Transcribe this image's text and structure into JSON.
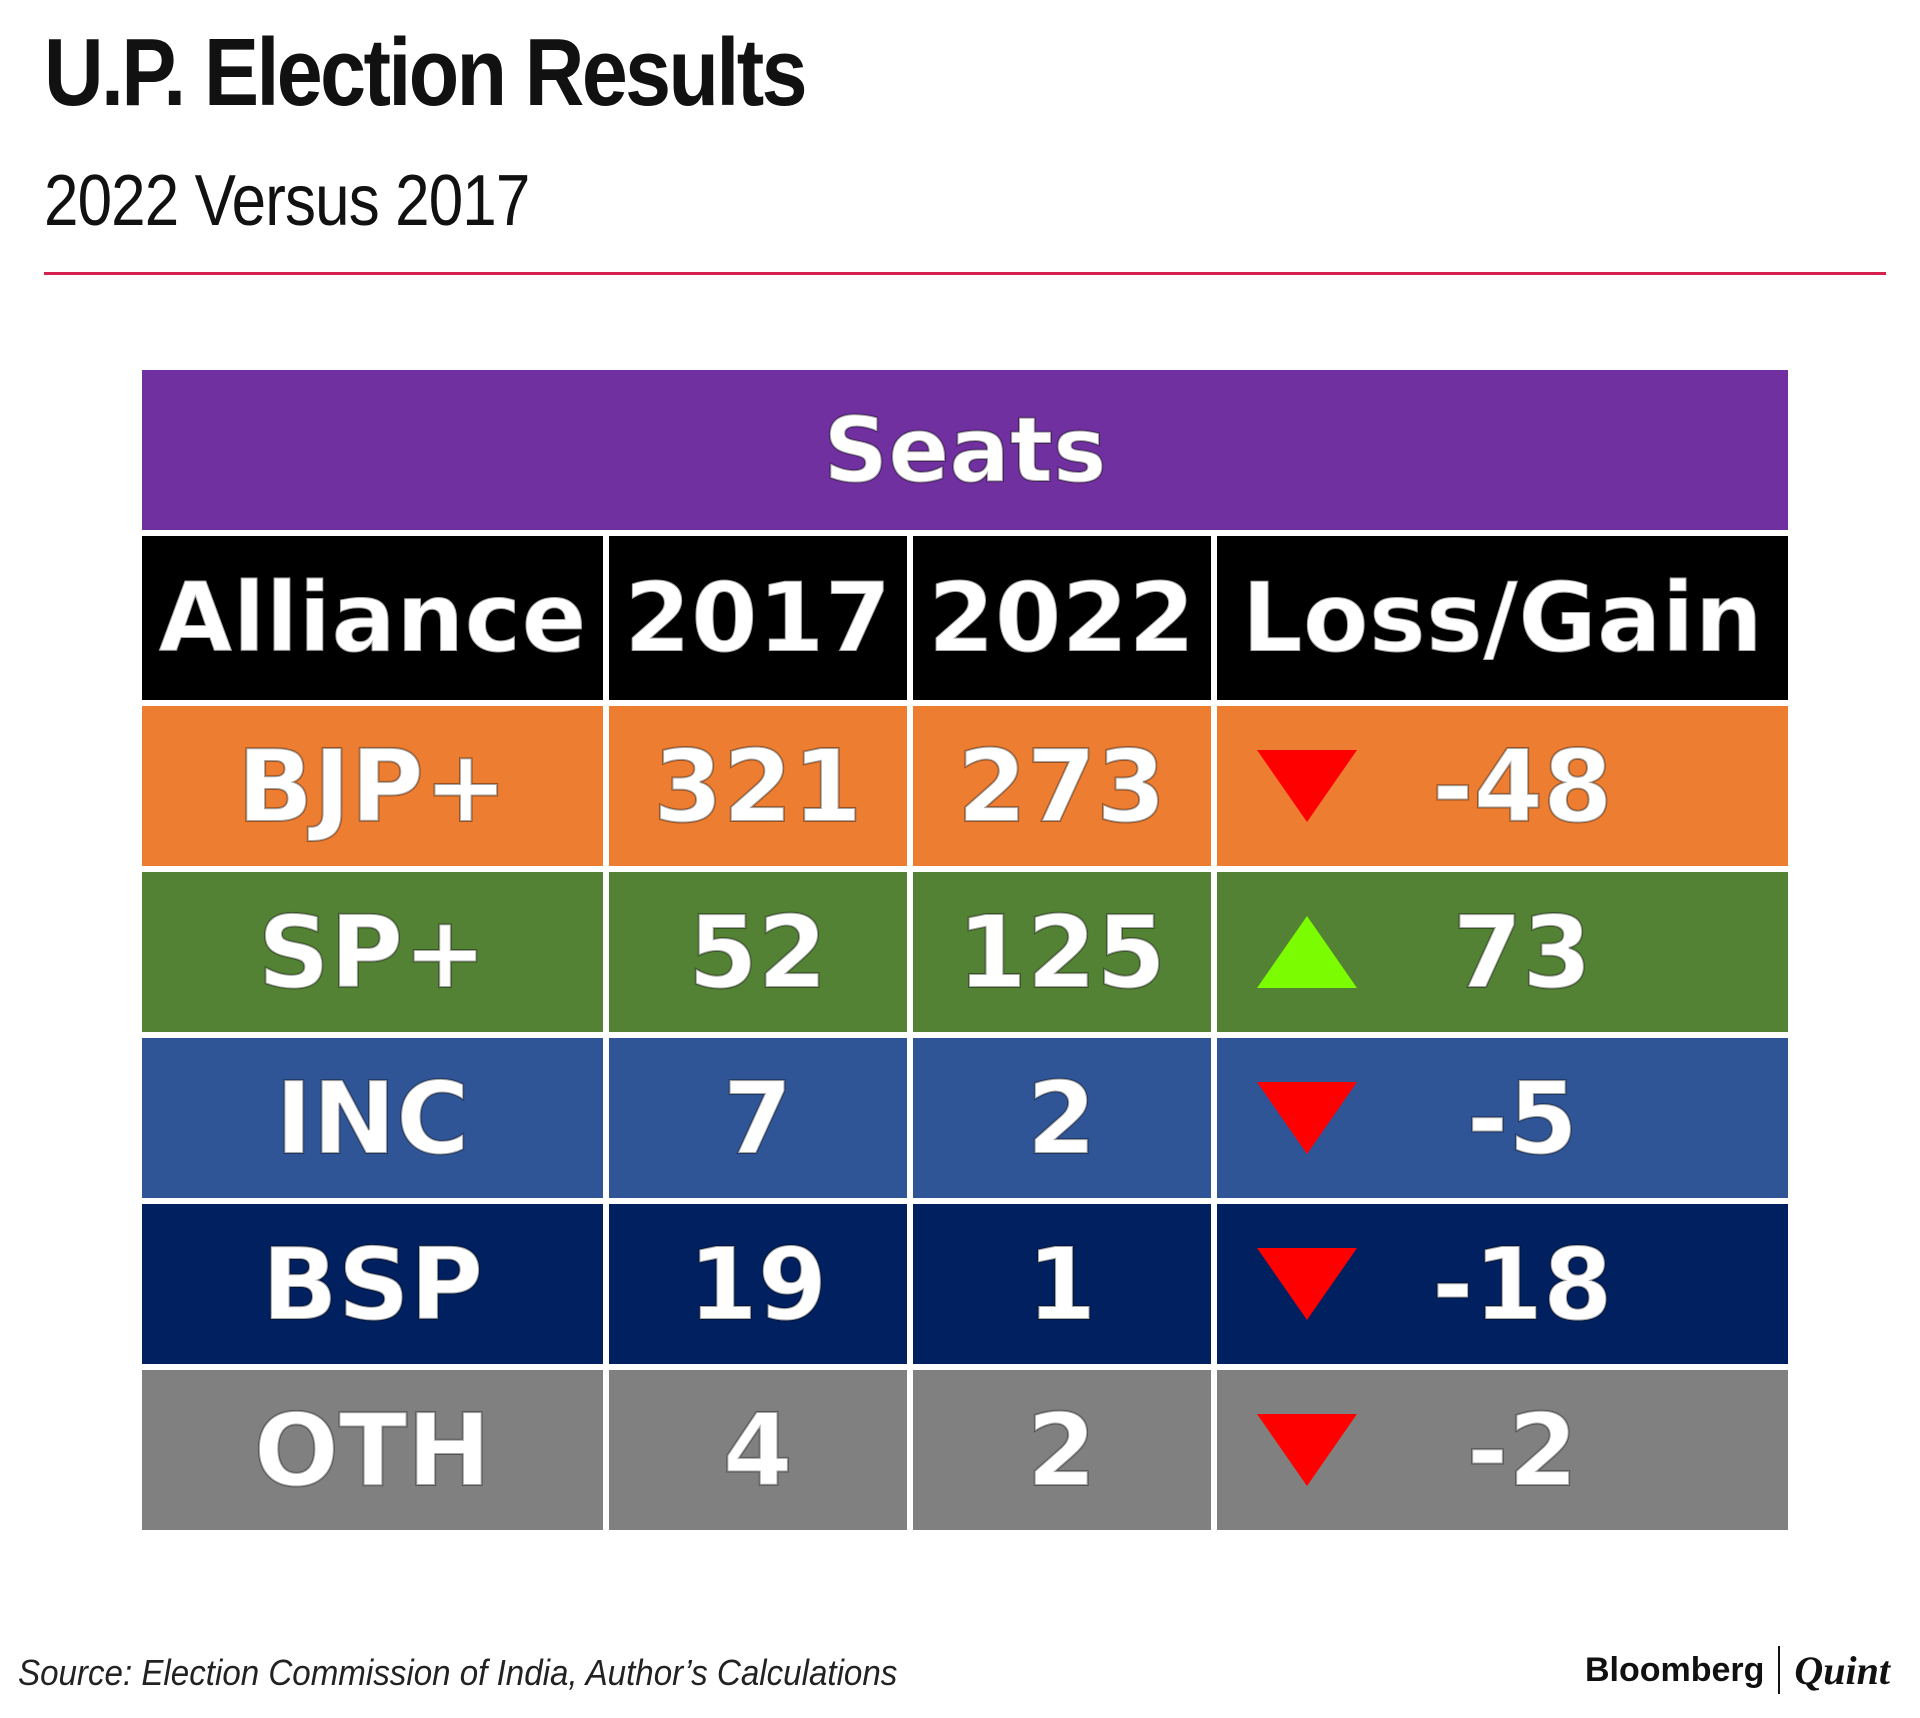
{
  "header": {
    "title": "U.P. Election Results",
    "subtitle": "2022 Versus 2017"
  },
  "table": {
    "group_header": "Seats",
    "columns": [
      "Alliance",
      "2017",
      "2022",
      "Loss/Gain"
    ]
  },
  "chart_data": {
    "type": "table",
    "title": "U.P. Election Results",
    "subtitle": "2022 Versus 2017",
    "group_header": "Seats",
    "columns": [
      "Alliance",
      "2017",
      "2022",
      "Loss/Gain"
    ],
    "rows": [
      {
        "alliance": "BJP+",
        "y2017": "321",
        "y2022": "273",
        "change": "-48",
        "direction": "down",
        "row_color": "#ed7d31",
        "arrow_color": "#ff0000"
      },
      {
        "alliance": "SP+",
        "y2017": "52",
        "y2022": "125",
        "change": "73",
        "direction": "up",
        "row_color": "#548235",
        "arrow_color": "#7cfc00"
      },
      {
        "alliance": "INC",
        "y2017": "7",
        "y2022": "2",
        "change": "-5",
        "direction": "down",
        "row_color": "#2f5597",
        "arrow_color": "#ff0000"
      },
      {
        "alliance": "BSP",
        "y2017": "19",
        "y2022": "1",
        "change": "-18",
        "direction": "down",
        "row_color": "#002060",
        "arrow_color": "#ff0000"
      },
      {
        "alliance": "OTH",
        "y2017": "4",
        "y2022": "2",
        "change": "-2",
        "direction": "down",
        "row_color": "#808080",
        "arrow_color": "#ff0000"
      }
    ]
  },
  "colors": {
    "group_header_bg": "#7030a0",
    "column_header_bg": "#000000",
    "rule": "#d6204f"
  },
  "footer": {
    "source": "Source: Election Commission of India, Author’s Calculations",
    "brand_left": "Bloomberg",
    "brand_right": "Quint"
  }
}
